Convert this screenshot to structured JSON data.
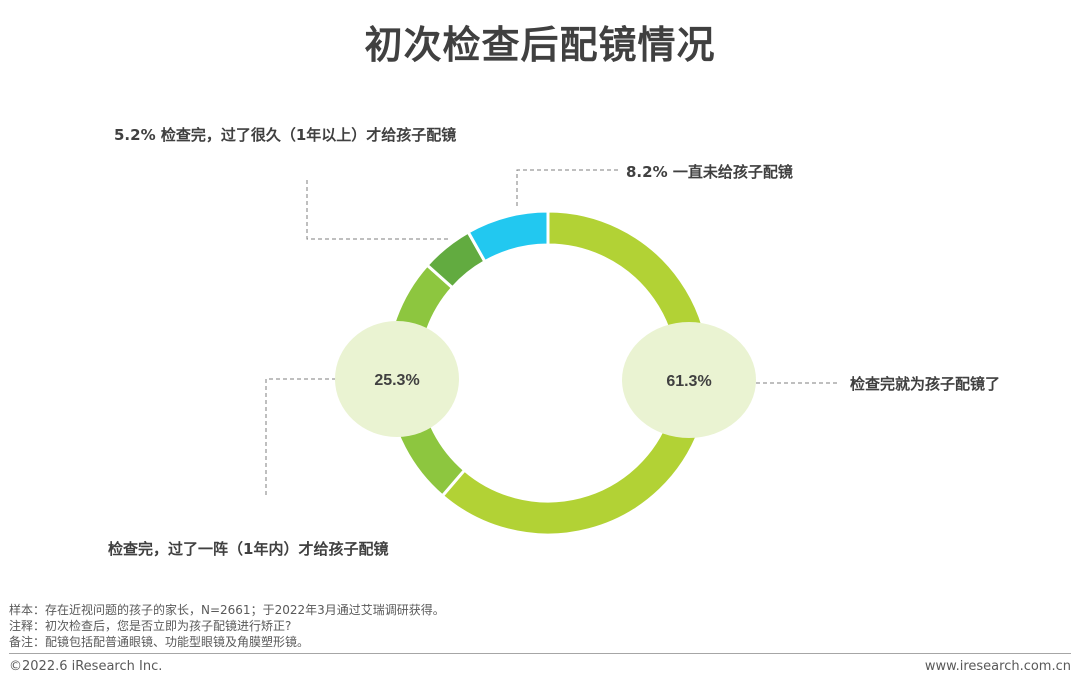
{
  "title": "初次检查后配镜情况",
  "chart_data": {
    "type": "pie",
    "style": "donut",
    "slices": [
      {
        "label": "检查完就为孩子配镜了",
        "value": 61.3,
        "value_text": "61.3%",
        "color": "#b2d235"
      },
      {
        "label": "检查完，过了一阵（1年内）才给孩子配镜",
        "value": 25.3,
        "value_text": "25.3%",
        "color": "#8dc63f"
      },
      {
        "label": "检查完，过了很久（1年以上）才给孩子配镜",
        "value": 5.2,
        "value_text": "5.2%",
        "color": "#62ab40"
      },
      {
        "label": "一直未给孩子配镜",
        "value": 8.2,
        "value_text": "8.2%",
        "color": "#22c8f0"
      }
    ],
    "callout_bubble_color": "#eaf3d2"
  },
  "labels": {
    "slice0": "检查完就为孩子配镜了",
    "slice1": "检查完，过了一阵（1年内）才给孩子配镜",
    "slice2": "5.2% 检查完，过了很久（1年以上）才给孩子配镜",
    "slice3": "8.2% 一直未给孩子配镜"
  },
  "notes": {
    "sample": "样本：存在近视问题的孩子的家长，N=2661；于2022年3月通过艾瑞调研获得。",
    "note": "注释：初次检查后，您是否立即为孩子配镜进行矫正?",
    "remark": "备注：配镜包括配普通眼镜、功能型眼镜及角膜塑形镜。"
  },
  "footer": {
    "copyright": "©2022.6 iResearch Inc.",
    "website": "www.iresearch.com.cn"
  }
}
